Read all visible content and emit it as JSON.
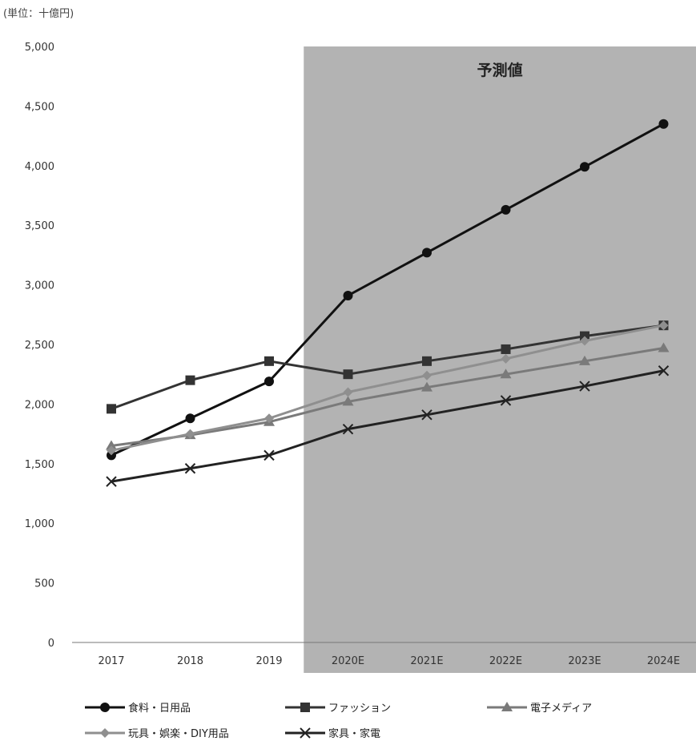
{
  "unit_label": "(単位：十億円)",
  "forecast_label": "予測値",
  "colors": {
    "forecast_bg": "#b3b3b3",
    "food": "#111111",
    "fashion": "#333333",
    "electronics": "#7a7a7a",
    "toys": "#8f8f8f",
    "furniture": "#222222"
  },
  "chart_data": {
    "type": "line",
    "categories": [
      "2017",
      "2018",
      "2019",
      "2020E",
      "2021E",
      "2022E",
      "2023E",
      "2024E"
    ],
    "ylim": [
      0,
      5000
    ],
    "yticks": [
      "0",
      "500",
      "1,000",
      "1,500",
      "2,000",
      "2,500",
      "3,000",
      "3,500",
      "4,000",
      "4,500",
      "5,000"
    ],
    "ytick_values": [
      0,
      500,
      1000,
      1500,
      2000,
      2500,
      3000,
      3500,
      4000,
      4500,
      5000
    ],
    "forecast_start_index": 3,
    "grid": false,
    "legend_position": "bottom",
    "series": [
      {
        "name": "食料・日用品",
        "marker": "circle",
        "color_key": "food",
        "values": [
          1570,
          1880,
          2190,
          2910,
          3270,
          3630,
          3990,
          4350
        ]
      },
      {
        "name": "ファッション",
        "marker": "square",
        "color_key": "fashion",
        "values": [
          1960,
          2200,
          2360,
          2250,
          2360,
          2460,
          2570,
          2660
        ]
      },
      {
        "name": "電子メディア",
        "marker": "triangle",
        "color_key": "electronics",
        "values": [
          1650,
          1740,
          1850,
          2020,
          2140,
          2250,
          2360,
          2470
        ]
      },
      {
        "name": "玩具・娯楽・DIY用品",
        "marker": "diamond",
        "color_key": "toys",
        "values": [
          1610,
          1750,
          1880,
          2100,
          2240,
          2380,
          2530,
          2660
        ]
      },
      {
        "name": "家具・家電",
        "marker": "x",
        "color_key": "furniture",
        "values": [
          1350,
          1460,
          1570,
          1790,
          1910,
          2030,
          2150,
          2280
        ]
      }
    ]
  }
}
